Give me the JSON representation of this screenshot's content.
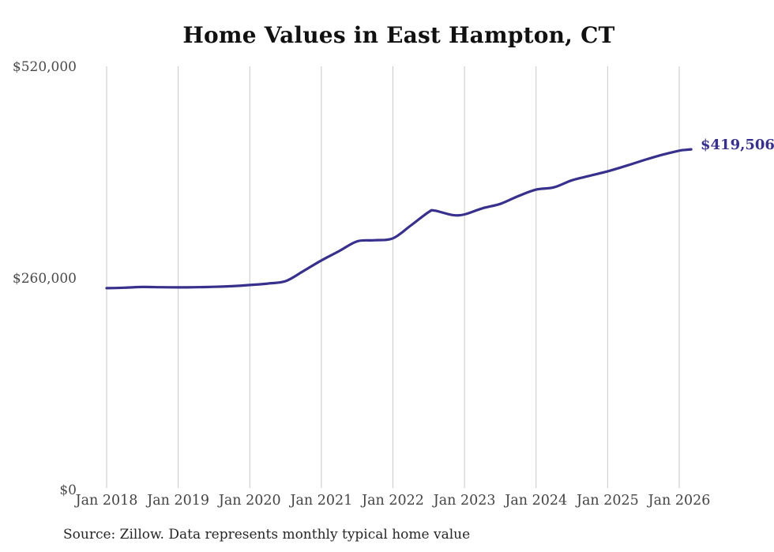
{
  "chart_data": {
    "type": "line",
    "title": "Home Values in East Hampton, CT",
    "series_name": "Monthly typical home value",
    "line_color": "#37308c",
    "grid_color": "#c9c9c9",
    "end_label": "$419,506",
    "end_value": 419506,
    "ylim": [
      0,
      520000
    ],
    "xlim_months": [
      0,
      96
    ],
    "grid": "vertical-only",
    "legend": "none",
    "y_ticks": [
      {
        "value": 0,
        "label": "$0"
      },
      {
        "value": 260000,
        "label": "$260,000"
      },
      {
        "value": 520000,
        "label": "$520,000"
      }
    ],
    "x_ticks": [
      {
        "month": 0,
        "label": "Jan 2018"
      },
      {
        "month": 12,
        "label": "Jan 2019"
      },
      {
        "month": 24,
        "label": "Jan 2020"
      },
      {
        "month": 36,
        "label": "Jan 2021"
      },
      {
        "month": 48,
        "label": "Jan 2022"
      },
      {
        "month": 60,
        "label": "Jan 2023"
      },
      {
        "month": 72,
        "label": "Jan 2024"
      },
      {
        "month": 84,
        "label": "Jan 2025"
      },
      {
        "month": 96,
        "label": "Jan 2026"
      }
    ],
    "x_unit": "months since Jan 2018",
    "points": [
      [
        0,
        249000
      ],
      [
        3,
        249500
      ],
      [
        6,
        250400
      ],
      [
        9,
        250100
      ],
      [
        12,
        249900
      ],
      [
        15,
        250100
      ],
      [
        18,
        250600
      ],
      [
        21,
        251400
      ],
      [
        24,
        252800
      ],
      [
        27,
        254600
      ],
      [
        30,
        257600
      ],
      [
        33,
        270000
      ],
      [
        36,
        283000
      ],
      [
        39,
        294500
      ],
      [
        42,
        306500
      ],
      [
        45,
        307800
      ],
      [
        48,
        310200
      ],
      [
        51,
        326000
      ],
      [
        54,
        342500
      ],
      [
        55,
        344200
      ],
      [
        58,
        338800
      ],
      [
        60,
        339600
      ],
      [
        63,
        347000
      ],
      [
        66,
        352500
      ],
      [
        69,
        362000
      ],
      [
        72,
        370000
      ],
      [
        75,
        372800
      ],
      [
        78,
        381500
      ],
      [
        81,
        387000
      ],
      [
        84,
        392500
      ],
      [
        87,
        399000
      ],
      [
        90,
        406000
      ],
      [
        93,
        412500
      ],
      [
        96,
        417800
      ],
      [
        97,
        418800
      ],
      [
        98,
        419506
      ]
    ]
  },
  "source_note": "Source: Zillow. Data represents monthly typical home value"
}
